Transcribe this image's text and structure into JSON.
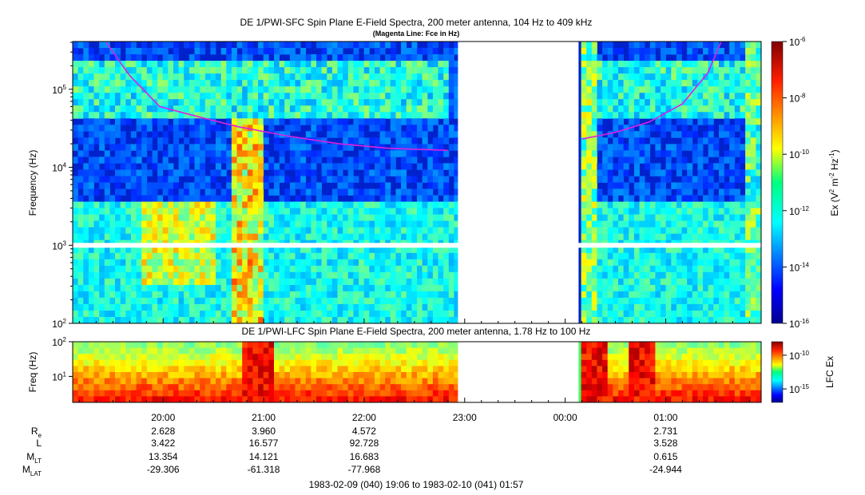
{
  "chart_data": [
    {
      "type": "heatmap",
      "title": "DE 1/PWI-SFC  Spin Plane E-Field Spectra, 200 meter antenna, 104 Hz to 409 kHz",
      "subtitle": "(Magenta Line: Fce in Hz)",
      "ylabel": "Frequency (Hz)",
      "y_scale": "log",
      "ylim": [
        100,
        409000
      ],
      "y_ticks": [
        {
          "value": 100,
          "base": "10",
          "exp": "2"
        },
        {
          "value": 1000,
          "base": "10",
          "exp": "3"
        },
        {
          "value": 10000,
          "base": "10",
          "exp": "4"
        },
        {
          "value": 100000,
          "base": "10",
          "exp": "5"
        }
      ],
      "colorbar": {
        "label_parts": {
          "pre": "Ex (V",
          "e1": "2",
          "mid1": " m",
          "e2": "-2",
          "mid2": " Hz",
          "e3": "-1",
          "post": ")"
        },
        "scale": "log",
        "range": [
          1e-16,
          1e-06
        ],
        "ticks": [
          {
            "value": 1e-16,
            "base": "10",
            "exp": "-16"
          },
          {
            "value": 1e-14,
            "base": "10",
            "exp": "-14"
          },
          {
            "value": 1e-12,
            "base": "10",
            "exp": "-12"
          },
          {
            "value": 1e-10,
            "base": "10",
            "exp": "-10"
          },
          {
            "value": 1e-08,
            "base": "10",
            "exp": "-8"
          },
          {
            "value": 1e-06,
            "base": "10",
            "exp": "-6"
          }
        ]
      },
      "data_gaps": [
        {
          "start": "22:56",
          "end": "00:08"
        },
        {
          "freq_hz": 1000
        }
      ],
      "fce_line": {
        "color": "#e020e0",
        "points": [
          {
            "t": "19:26",
            "f": 400000
          },
          {
            "t": "19:40",
            "f": 150000
          },
          {
            "t": "19:58",
            "f": 60000
          },
          {
            "t": "20:20",
            "f": 45000
          },
          {
            "t": "20:45",
            "f": 33000
          },
          {
            "t": "21:15",
            "f": 25000
          },
          {
            "t": "21:45",
            "f": 20000
          },
          {
            "t": "22:15",
            "f": 17500
          },
          {
            "t": "22:50",
            "f": 16500
          },
          {
            "t": "00:10",
            "f": 23000
          },
          {
            "t": "00:30",
            "f": 28000
          },
          {
            "t": "00:50",
            "f": 38000
          },
          {
            "t": "01:10",
            "f": 65000
          },
          {
            "t": "01:25",
            "f": 160000
          },
          {
            "t": "01:33",
            "f": 400000
          }
        ]
      }
    },
    {
      "type": "heatmap",
      "title": "DE 1/PWI-LFC  Spin Plane E-Field Spectra, 200 meter antenna, 1.78 Hz to 100 Hz",
      "ylabel": "Freq (Hz)",
      "y_scale": "log",
      "ylim": [
        1.78,
        100
      ],
      "y_ticks": [
        {
          "value": 10,
          "base": "10",
          "exp": "1"
        },
        {
          "value": 100,
          "base": "10",
          "exp": "2"
        }
      ],
      "colorbar": {
        "label": "LFC Ex",
        "scale": "log",
        "range": [
          1e-17,
          1e-08
        ],
        "ticks": [
          {
            "value": 1e-15,
            "base": "10",
            "exp": "-15"
          },
          {
            "value": 1e-10,
            "base": "10",
            "exp": "-10"
          }
        ]
      },
      "data_gaps": [
        {
          "start": "22:56",
          "end": "00:08"
        }
      ]
    }
  ],
  "time_axis": {
    "start": "19:06",
    "end": "01:57",
    "tick_labels": [
      "20:00",
      "21:00",
      "22:00",
      "23:00",
      "00:00",
      "01:00"
    ],
    "tick_times": [
      "20:00",
      "21:00",
      "22:00",
      "23:00",
      "00:00",
      "01:00"
    ]
  },
  "ephemeris": {
    "rows": [
      {
        "label": "R",
        "sub": "e",
        "values": [
          "2.628",
          "3.960",
          "4.572",
          "",
          "",
          "2.731"
        ]
      },
      {
        "label": "L",
        "sub": "",
        "values": [
          "3.422",
          "16.577",
          "92.728",
          "",
          "",
          "3.528"
        ]
      },
      {
        "label": "M",
        "sub": "LT",
        "values": [
          "13.354",
          "14.121",
          "16.683",
          "",
          "",
          "0.615"
        ]
      },
      {
        "label": "M",
        "sub": "LAT",
        "values": [
          "-29.306",
          "-61.318",
          "-77.968",
          "",
          "",
          "-24.944"
        ]
      }
    ]
  },
  "time_range_caption": "1983-02-09 (040) 19:06 to 1983-02-10 (041) 01:57"
}
